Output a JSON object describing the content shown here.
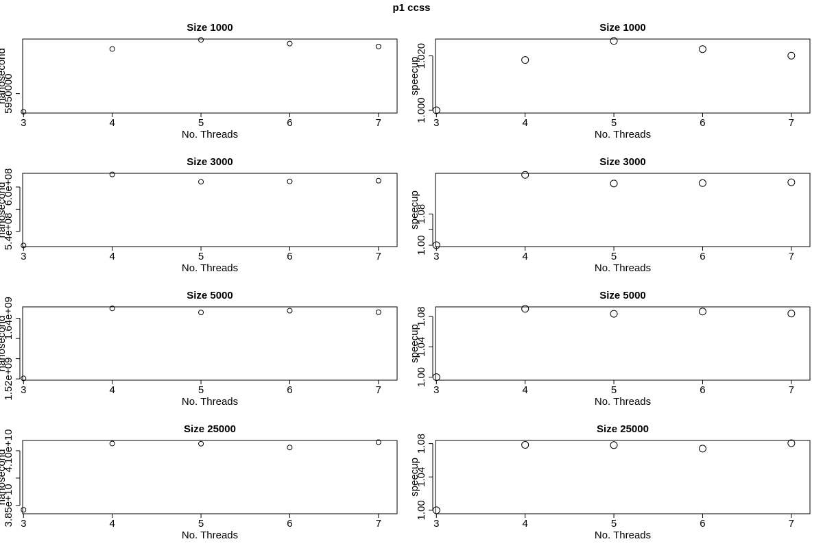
{
  "figure_title": "p1   ccss",
  "chart_data": [
    {
      "type": "scatter",
      "title": "Size 1000",
      "xlabel": "No. Threads",
      "ylabel": "nanosecond",
      "x": [
        3,
        4,
        5,
        6,
        7
      ],
      "y": [
        5928000,
        6004000,
        6015000,
        6010500,
        6007000
      ],
      "xlim": [
        2.99,
        7.21
      ],
      "ylim": [
        5926500,
        6016000
      ],
      "xticks": [
        3,
        4,
        5,
        6,
        7
      ],
      "yticks": [
        5950000
      ],
      "ytick_labels": [
        "5950000"
      ],
      "point_size": 3.5
    },
    {
      "type": "scatter",
      "title": "Size 1000",
      "xlabel": "No. Threads",
      "ylabel": "speecup",
      "x": [
        3,
        4,
        5,
        6,
        7
      ],
      "y": [
        1.0,
        1.0185,
        1.0255,
        1.0225,
        1.0201
      ],
      "xlim": [
        2.99,
        7.21
      ],
      "ylim": [
        0.999,
        1.0262
      ],
      "xticks": [
        3,
        4,
        5,
        6,
        7
      ],
      "yticks": [
        1.0,
        1.02
      ],
      "ytick_labels": [
        "1.000",
        "1.020"
      ],
      "point_size": 5
    },
    {
      "type": "scatter",
      "title": "Size 3000",
      "xlabel": "No. Threads",
      "ylabel": "nanosecond",
      "x": [
        3,
        4,
        5,
        6,
        7
      ],
      "y": [
        521000000.0,
        617000000.0,
        607000000.0,
        607500000.0,
        608500000.0
      ],
      "xlim": [
        2.99,
        7.21
      ],
      "ylim": [
        519500000.0,
        618500000.0
      ],
      "xticks": [
        3,
        4,
        5,
        6,
        7
      ],
      "yticks": [
        540000000.0,
        570000000.0,
        600000000.0
      ],
      "ytick_labels": [
        "5.4e+08",
        "",
        "6.0e+08"
      ],
      "point_size": 3.5
    },
    {
      "type": "scatter",
      "title": "Size 3000",
      "xlabel": "No. Threads",
      "ylabel": "speecup",
      "x": [
        3,
        4,
        5,
        6,
        7
      ],
      "y": [
        1.0,
        1.18,
        1.158,
        1.159,
        1.161
      ],
      "xlim": [
        2.99,
        7.21
      ],
      "ylim": [
        0.9965,
        1.184
      ],
      "xticks": [
        3,
        4,
        5,
        6,
        7
      ],
      "yticks": [
        1.0,
        1.04,
        1.08
      ],
      "ytick_labels": [
        "1.00",
        "",
        "1.08"
      ],
      "point_size": 5
    },
    {
      "type": "scatter",
      "title": "Size 5000",
      "xlabel": "No. Threads",
      "ylabel": "nanosecond",
      "x": [
        3,
        4,
        5,
        6,
        7
      ],
      "y": [
        1521000000.0,
        1659500000.0,
        1651500000.0,
        1655000000.0,
        1652000000.0
      ],
      "xlim": [
        2.99,
        7.21
      ],
      "ylim": [
        1517500000.0,
        1662500000.0
      ],
      "xticks": [
        3,
        4,
        5,
        6,
        7
      ],
      "yticks": [
        1520000000.0,
        1560000000.0,
        1600000000.0,
        1640000000.0
      ],
      "ytick_labels": [
        "1.52e+09",
        "",
        "",
        "1.64e+09"
      ],
      "point_size": 3.5
    },
    {
      "type": "scatter",
      "title": "Size 5000",
      "xlabel": "No. Threads",
      "ylabel": "speecup",
      "x": [
        3,
        4,
        5,
        6,
        7
      ],
      "y": [
        1.0,
        1.09,
        1.0835,
        1.0865,
        1.0838
      ],
      "xlim": [
        2.99,
        7.21
      ],
      "ylim": [
        0.996,
        1.0926
      ],
      "xticks": [
        3,
        4,
        5,
        6,
        7
      ],
      "yticks": [
        1.0,
        1.04,
        1.08
      ],
      "ytick_labels": [
        "1.00",
        "1.04",
        "1.08"
      ],
      "point_size": 5
    },
    {
      "type": "scatter",
      "title": "Size 25000",
      "xlabel": "No. Threads",
      "ylabel": "nanosecond",
      "x": [
        3,
        4,
        5,
        6,
        7
      ],
      "y": [
        38300000000.0,
        41330000000.0,
        41320000000.0,
        41150000000.0,
        41390000000.0
      ],
      "xlim": [
        2.99,
        7.21
      ],
      "ylim": [
        38120000000.0,
        41470000000.0
      ],
      "xticks": [
        3,
        4,
        5,
        6,
        7
      ],
      "yticks": [
        38500000000.0,
        39750000000.0,
        41000000000.0
      ],
      "ytick_labels": [
        "3.85e+10",
        "",
        "4.10e+10"
      ],
      "point_size": 3.5
    },
    {
      "type": "scatter",
      "title": "Size 25000",
      "xlabel": "No. Threads",
      "ylabel": "speecup",
      "x": [
        3,
        4,
        5,
        6,
        7
      ],
      "y": [
        1.0,
        1.0785,
        1.0782,
        1.074,
        1.0805
      ],
      "xlim": [
        2.99,
        7.21
      ],
      "ylim": [
        0.9958,
        1.0838
      ],
      "xticks": [
        3,
        4,
        5,
        6,
        7
      ],
      "yticks": [
        1.0,
        1.04,
        1.08
      ],
      "ytick_labels": [
        "1.00",
        "1.04",
        "1.08"
      ],
      "point_size": 5
    }
  ]
}
